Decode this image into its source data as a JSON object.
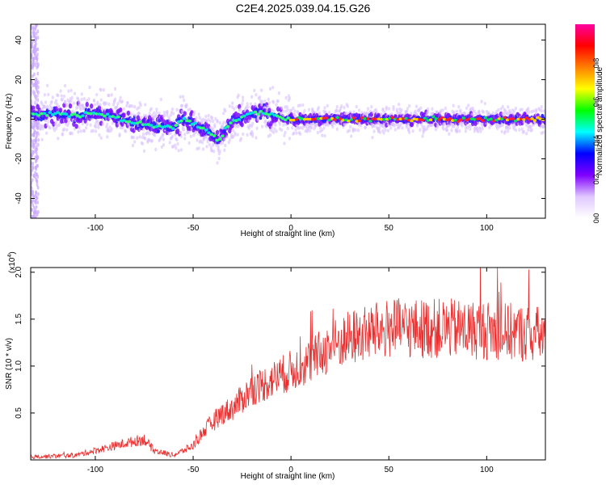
{
  "figure": {
    "title": "C2E4.2025.039.04.15.G26",
    "colors": {
      "snr_line": "#e83030",
      "background": "#ffffff",
      "axis": "#000000"
    }
  },
  "chart_data": [
    {
      "type": "heatmap",
      "xlabel": "Height of straight line (km)",
      "ylabel": "Frequency (Hz)",
      "xlim": [
        -133,
        130
      ],
      "ylim": [
        -50,
        48
      ],
      "x_ticks": [
        -100,
        -50,
        0,
        50,
        100
      ],
      "x_tick_labels": [
        "-100",
        "-50",
        "0",
        "50",
        "100"
      ],
      "y_ticks": [
        -40,
        -20,
        0,
        20,
        40
      ],
      "y_tick_labels": [
        "-40",
        "-20",
        "0",
        "20",
        "40"
      ],
      "colorbar": {
        "label": "Normalized spectral amplitude",
        "range": [
          0.0,
          1.0
        ],
        "ticks": [
          0.0,
          0.2,
          0.4,
          0.6,
          0.8
        ],
        "tick_labels": [
          "0.0",
          "0.2",
          "0.4",
          "0.6",
          "0.8"
        ],
        "colormap": [
          "#ffffff",
          "#e0c8ff",
          "#8000ff",
          "#0000ff",
          "#00ffff",
          "#00ff00",
          "#ffff00",
          "#ff8000",
          "#ff0000",
          "#ff00a0"
        ]
      },
      "centerline": {
        "x": [
          -133,
          -120,
          -110,
          -100,
          -90,
          -80,
          -70,
          -60,
          -55,
          -50,
          -45,
          -40,
          -37,
          -34,
          -30,
          -25,
          -20,
          -15,
          -10,
          -5,
          0,
          10,
          20,
          40,
          60,
          80,
          100,
          120,
          130
        ],
        "y": [
          2,
          3,
          2,
          3,
          1,
          -2,
          -3,
          -4,
          0,
          -2,
          -5,
          -8,
          -11,
          -6,
          -1,
          1,
          3,
          4,
          2,
          1,
          0,
          0,
          0,
          0,
          0,
          0,
          0,
          0,
          0
        ]
      },
      "scatter_noise_band": {
        "x": [
          -133,
          -129
        ],
        "y": [
          -50,
          48
        ]
      },
      "grid": false
    },
    {
      "type": "line",
      "xlabel": "Height of straight line (km)",
      "ylabel": "SNR (10 * v/v)",
      "y_multiplier_label": "(x10",
      "y_multiplier_exp": "4",
      "y_multiplier_close": ")",
      "xlim": [
        -133,
        130
      ],
      "ylim": [
        0,
        2.05
      ],
      "x_ticks": [
        -100,
        -50,
        0,
        50,
        100
      ],
      "x_tick_labels": [
        "-100",
        "-50",
        "0",
        "50",
        "100"
      ],
      "y_ticks": [
        0.5,
        1.0,
        1.5,
        2.0
      ],
      "y_tick_labels": [
        "0.5",
        "1.0",
        "1.5",
        "2.0"
      ],
      "trend": {
        "x": [
          -133,
          -110,
          -100,
          -90,
          -80,
          -75,
          -70,
          -60,
          -50,
          -45,
          -40,
          -35,
          -30,
          -25,
          -20,
          -10,
          0,
          10,
          20,
          30,
          40,
          50,
          60,
          80,
          100,
          120,
          130
        ],
        "y": [
          0.03,
          0.05,
          0.1,
          0.15,
          0.2,
          0.22,
          0.1,
          0.05,
          0.15,
          0.3,
          0.4,
          0.5,
          0.55,
          0.65,
          0.75,
          0.85,
          0.95,
          1.05,
          1.2,
          1.3,
          1.35,
          1.4,
          1.4,
          1.4,
          1.38,
          1.35,
          1.33
        ]
      },
      "grid": false
    }
  ]
}
